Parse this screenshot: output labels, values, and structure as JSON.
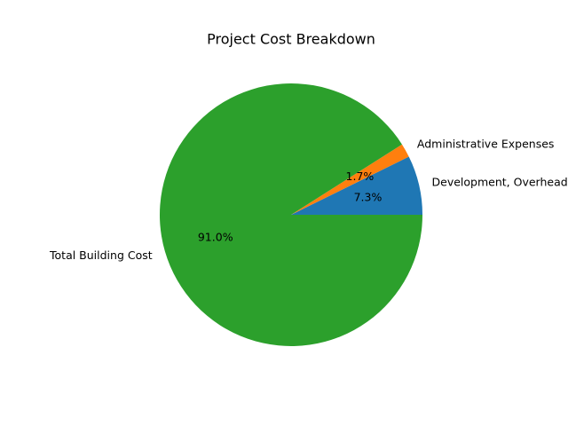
{
  "chart_data": {
    "type": "pie",
    "title": "Project Cost Breakdown",
    "slices": [
      {
        "label": "Development, Overhead",
        "value": 7.3,
        "pct_label": "7.3%",
        "color": "#1f77b4"
      },
      {
        "label": "Administrative Expenses",
        "value": 1.7,
        "pct_label": "1.7%",
        "color": "#ff7f0e"
      },
      {
        "label": "Total Building Cost",
        "value": 91.0,
        "pct_label": "91.0%",
        "color": "#2ca02c"
      }
    ]
  }
}
